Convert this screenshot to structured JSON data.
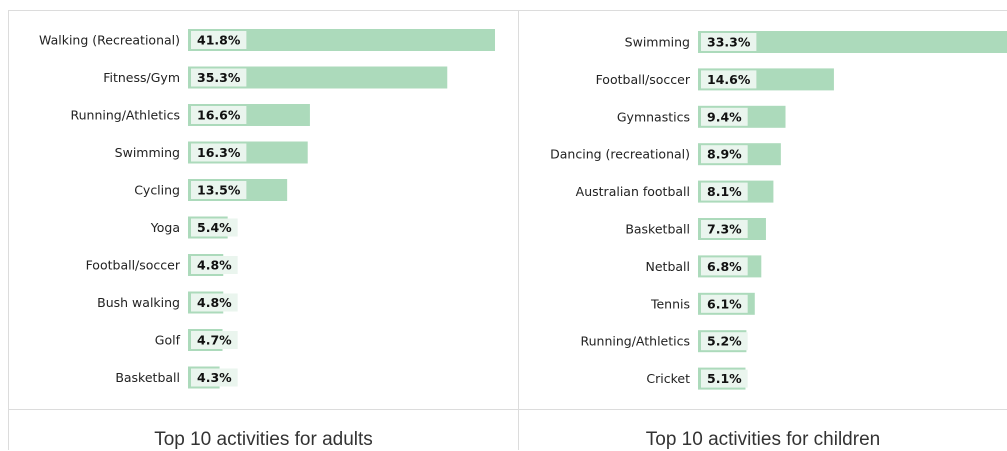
{
  "chart_data": [
    {
      "type": "bar",
      "orientation": "horizontal",
      "title": "Top 10 activities for adults",
      "categories": [
        "Walking (Recreational)",
        "Fitness/Gym",
        "Running/Athletics",
        "Swimming",
        "Cycling",
        "Yoga",
        "Football/soccer",
        "Bush walking",
        "Golf",
        "Basketball"
      ],
      "values": [
        41.8,
        35.3,
        16.6,
        16.3,
        13.5,
        5.4,
        4.8,
        4.8,
        4.7,
        4.3
      ],
      "value_labels": [
        "41.8%",
        "35.3%",
        "16.6%",
        "16.3%",
        "13.5%",
        "5.4%",
        "4.8%",
        "4.8%",
        "4.7%",
        "4.3%"
      ],
      "bar_color": "#acdabb",
      "label_box_color": "#eaf5ee",
      "xlim": [
        0,
        41.8
      ]
    },
    {
      "type": "bar",
      "orientation": "horizontal",
      "title": "Top 10 activities for children",
      "categories": [
        "Swimming",
        "Football/soccer",
        "Gymnastics",
        "Dancing (recreational)",
        "Australian football",
        "Basketball",
        "Netball",
        "Tennis",
        "Running/Athletics",
        "Cricket"
      ],
      "values": [
        33.3,
        14.6,
        9.4,
        8.9,
        8.1,
        7.3,
        6.8,
        6.1,
        5.2,
        5.1
      ],
      "value_labels": [
        "33.3%",
        "14.6%",
        "9.4%",
        "8.9%",
        "8.1%",
        "7.3%",
        "6.8%",
        "6.1%",
        "5.2%",
        "5.1%"
      ],
      "bar_color": "#acdabb",
      "label_box_color": "#eaf5ee",
      "xlim": [
        0,
        33.3
      ]
    }
  ]
}
